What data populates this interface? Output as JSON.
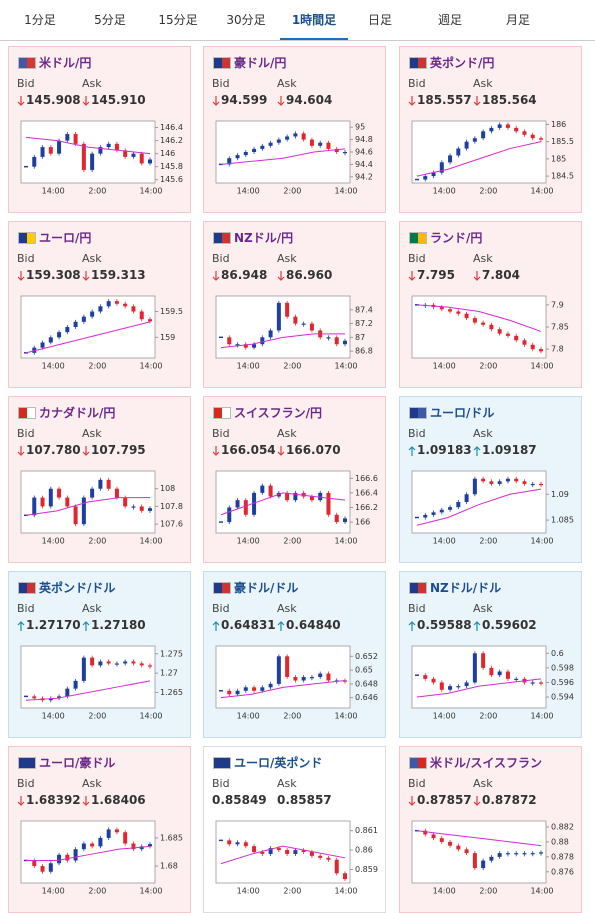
{
  "tabs": [
    "1分足",
    "5分足",
    "15分足",
    "30分足",
    "1時間足",
    "日足",
    "週足",
    "月足"
  ],
  "selected_tab": 4,
  "labels": {
    "bid": "Bid",
    "ask": "Ask"
  },
  "cards": [
    {
      "name": "米ドル/円",
      "trend": "down",
      "bid": "145.908",
      "ask": "145.910",
      "chart": {
        "ylim": [
          145.55,
          146.5
        ],
        "yticks": [
          146.4,
          146.2,
          146,
          145.8,
          145.6
        ],
        "x_labels": [
          "14:00",
          "2:00",
          "14:00"
        ],
        "closes": [
          145.8,
          145.95,
          146.1,
          146.0,
          146.2,
          146.3,
          146.15,
          145.75,
          146.0,
          146.1,
          146.15,
          146.05,
          145.95,
          146.0,
          145.85,
          145.91
        ],
        "ma": [
          146.25,
          146.2,
          146.1,
          146.05,
          146.0
        ]
      }
    },
    {
      "name": "豪ドル/円",
      "trend": "down",
      "bid": "94.599",
      "ask": "94.604",
      "chart": {
        "ylim": [
          94.1,
          95.1
        ],
        "yticks": [
          95,
          94.8,
          94.6,
          94.4,
          94.2
        ],
        "x_labels": [
          "14:00",
          "2:00",
          "14:00"
        ],
        "closes": [
          94.4,
          94.5,
          94.55,
          94.6,
          94.65,
          94.7,
          94.75,
          94.8,
          94.85,
          94.9,
          94.8,
          94.7,
          94.75,
          94.65,
          94.6,
          94.6
        ],
        "ma": [
          94.4,
          94.45,
          94.5,
          94.6,
          94.65
        ]
      }
    },
    {
      "name": "英ポンド/円",
      "trend": "down",
      "bid": "185.557",
      "ask": "185.564",
      "chart": {
        "ylim": [
          184.3,
          186.1
        ],
        "yticks": [
          186,
          185.5,
          185,
          184.5
        ],
        "x_labels": [
          "14:00",
          "2:00",
          "14:00"
        ],
        "closes": [
          184.4,
          184.5,
          184.6,
          184.9,
          185.1,
          185.3,
          185.5,
          185.6,
          185.8,
          185.9,
          186.0,
          185.9,
          185.8,
          185.7,
          185.6,
          185.56
        ],
        "ma": [
          184.5,
          184.7,
          185.0,
          185.3,
          185.5
        ]
      }
    },
    {
      "name": "ユーロ/円",
      "trend": "down",
      "bid": "159.308",
      "ask": "159.313",
      "chart": {
        "ylim": [
          158.6,
          159.8
        ],
        "yticks": [
          159.5,
          159
        ],
        "x_labels": [
          "14:00",
          "2:00",
          "14:00"
        ],
        "closes": [
          158.7,
          158.8,
          158.9,
          159.0,
          159.1,
          159.2,
          159.3,
          159.4,
          159.5,
          159.6,
          159.7,
          159.65,
          159.6,
          159.5,
          159.35,
          159.31
        ],
        "ma": [
          158.7,
          158.85,
          159.0,
          159.15,
          159.3
        ]
      }
    },
    {
      "name": "NZドル/円",
      "trend": "down",
      "bid": "86.948",
      "ask": "86.960",
      "chart": {
        "ylim": [
          86.7,
          87.6
        ],
        "yticks": [
          87.4,
          87.2,
          87,
          86.8
        ],
        "x_labels": [
          "14:00",
          "2:00",
          "14:00"
        ],
        "closes": [
          87.0,
          86.9,
          86.9,
          86.85,
          86.9,
          87.0,
          87.1,
          87.5,
          87.3,
          87.2,
          87.2,
          87.1,
          87.0,
          87.0,
          86.9,
          86.95
        ],
        "ma": [
          86.85,
          86.9,
          87.0,
          87.05,
          87.05
        ]
      }
    },
    {
      "name": "ランド/円",
      "trend": "down",
      "bid": "7.795",
      "ask": "7.804",
      "chart": {
        "ylim": [
          7.78,
          7.92
        ],
        "yticks": [
          7.9,
          7.85,
          7.8
        ],
        "x_labels": [
          "14:00",
          "2:00",
          "14:00"
        ],
        "closes": [
          7.9,
          7.9,
          7.895,
          7.89,
          7.885,
          7.88,
          7.87,
          7.86,
          7.855,
          7.845,
          7.835,
          7.83,
          7.82,
          7.81,
          7.8,
          7.795
        ],
        "ma": [
          7.9,
          7.895,
          7.885,
          7.865,
          7.84
        ]
      }
    },
    {
      "name": "カナダドル/円",
      "trend": "down",
      "bid": "107.780",
      "ask": "107.795",
      "chart": {
        "ylim": [
          107.5,
          108.2
        ],
        "yticks": [
          108,
          107.8,
          107.6
        ],
        "x_labels": [
          "14:00",
          "2:00",
          "14:00"
        ],
        "closes": [
          107.7,
          107.9,
          107.8,
          108.0,
          107.9,
          107.8,
          107.6,
          107.9,
          108.0,
          108.1,
          108.0,
          107.9,
          107.8,
          107.8,
          107.75,
          107.78
        ],
        "ma": [
          107.7,
          107.75,
          107.85,
          107.9,
          107.9
        ]
      }
    },
    {
      "name": "スイスフラン/円",
      "trend": "down",
      "bid": "166.054",
      "ask": "166.070",
      "chart": {
        "ylim": [
          165.85,
          166.7
        ],
        "yticks": [
          166.6,
          166.4,
          166.2,
          166
        ],
        "x_labels": [
          "14:00",
          "2:00",
          "14:00"
        ],
        "closes": [
          166.0,
          166.2,
          166.3,
          166.1,
          166.4,
          166.5,
          166.35,
          166.4,
          166.3,
          166.4,
          166.35,
          166.3,
          166.4,
          166.1,
          166.0,
          166.05
        ],
        "ma": [
          166.1,
          166.25,
          166.4,
          166.35,
          166.3
        ]
      }
    },
    {
      "name": "ユーロ/ドル",
      "trend": "up",
      "bid": "1.09183",
      "ask": "1.09187",
      "chart": {
        "ylim": [
          1.0825,
          1.0945
        ],
        "yticks": [
          1.09,
          1.085
        ],
        "x_labels": [
          "14:00",
          "2:00",
          "14:00"
        ],
        "closes": [
          1.0855,
          1.086,
          1.0865,
          1.087,
          1.0875,
          1.0885,
          1.09,
          1.093,
          1.0925,
          1.092,
          1.0925,
          1.093,
          1.0925,
          1.092,
          1.092,
          1.09183
        ],
        "ma": [
          1.084,
          1.0855,
          1.088,
          1.09,
          1.091
        ]
      }
    },
    {
      "name": "英ポンド/ドル",
      "trend": "up",
      "bid": "1.27170",
      "ask": "1.27180",
      "chart": {
        "ylim": [
          1.261,
          1.277
        ],
        "yticks": [
          1.275,
          1.27,
          1.265
        ],
        "x_labels": [
          "14:00",
          "2:00",
          "14:00"
        ],
        "closes": [
          1.264,
          1.2635,
          1.263,
          1.2635,
          1.264,
          1.266,
          1.268,
          1.274,
          1.272,
          1.273,
          1.2725,
          1.2725,
          1.273,
          1.2725,
          1.272,
          1.2717
        ],
        "ma": [
          1.263,
          1.2635,
          1.265,
          1.2665,
          1.268
        ]
      }
    },
    {
      "name": "豪ドル/ドル",
      "trend": "up",
      "bid": "0.64831",
      "ask": "0.64840",
      "chart": {
        "ylim": [
          0.6445,
          0.6535
        ],
        "yticks": [
          0.652,
          0.65,
          0.648,
          0.646
        ],
        "x_labels": [
          "14:00",
          "2:00",
          "14:00"
        ],
        "closes": [
          0.647,
          0.6465,
          0.647,
          0.6475,
          0.647,
          0.6475,
          0.648,
          0.652,
          0.649,
          0.6485,
          0.649,
          0.649,
          0.6495,
          0.6485,
          0.6485,
          0.6484
        ],
        "ma": [
          0.646,
          0.6465,
          0.6475,
          0.648,
          0.6485
        ]
      }
    },
    {
      "name": "NZドル/ドル",
      "trend": "up",
      "bid": "0.59588",
      "ask": "0.59602",
      "chart": {
        "ylim": [
          0.5925,
          0.601
        ],
        "yticks": [
          0.6,
          0.598,
          0.596,
          0.594
        ],
        "x_labels": [
          "14:00",
          "2:00",
          "14:00"
        ],
        "closes": [
          0.597,
          0.5965,
          0.596,
          0.595,
          0.5955,
          0.5955,
          0.596,
          0.6,
          0.598,
          0.597,
          0.5975,
          0.5965,
          0.5965,
          0.596,
          0.596,
          0.59588
        ],
        "ma": [
          0.594,
          0.5945,
          0.5955,
          0.596,
          0.5965
        ]
      }
    },
    {
      "name": "ユーロ/豪ドル",
      "trend": "down",
      "bid": "1.68392",
      "ask": "1.68406",
      "chart": {
        "ylim": [
          1.677,
          1.688
        ],
        "yticks": [
          1.685,
          1.68
        ],
        "x_labels": [
          "14:00",
          "2:00",
          "14:00"
        ],
        "closes": [
          1.681,
          1.68,
          1.679,
          1.6805,
          1.682,
          1.681,
          1.683,
          1.684,
          1.6835,
          1.685,
          1.6865,
          1.686,
          1.684,
          1.683,
          1.6835,
          1.6839
        ],
        "ma": [
          1.681,
          1.681,
          1.682,
          1.683,
          1.6835
        ]
      }
    },
    {
      "name": "ユーロ/英ポンド",
      "trend": "none",
      "bid": "0.85849",
      "ask": "0.85857",
      "chart": {
        "ylim": [
          0.8583,
          0.8615
        ],
        "yticks": [
          0.861,
          0.86,
          0.859
        ],
        "x_labels": [
          "14:00",
          "2:00",
          "14:00"
        ],
        "closes": [
          0.8605,
          0.8603,
          0.8604,
          0.8602,
          0.8599,
          0.8598,
          0.8601,
          0.86,
          0.8598,
          0.86,
          0.8599,
          0.8597,
          0.8596,
          0.8595,
          0.8588,
          0.8585
        ],
        "ma": [
          0.8593,
          0.8598,
          0.8602,
          0.8599,
          0.8596
        ]
      }
    },
    {
      "name": "米ドル/スイスフラン",
      "trend": "down",
      "bid": "0.87857",
      "ask": "0.87872",
      "chart": {
        "ylim": [
          0.8745,
          0.8828
        ],
        "yticks": [
          0.882,
          0.88,
          0.878,
          0.876
        ],
        "x_labels": [
          "14:00",
          "2:00",
          "14:00"
        ],
        "closes": [
          0.8815,
          0.881,
          0.8805,
          0.88,
          0.8795,
          0.879,
          0.8785,
          0.8765,
          0.8775,
          0.878,
          0.8785,
          0.8785,
          0.8785,
          0.8785,
          0.8785,
          0.8786
        ],
        "ma": [
          0.8815,
          0.881,
          0.8805,
          0.88,
          0.8795
        ]
      }
    }
  ]
}
